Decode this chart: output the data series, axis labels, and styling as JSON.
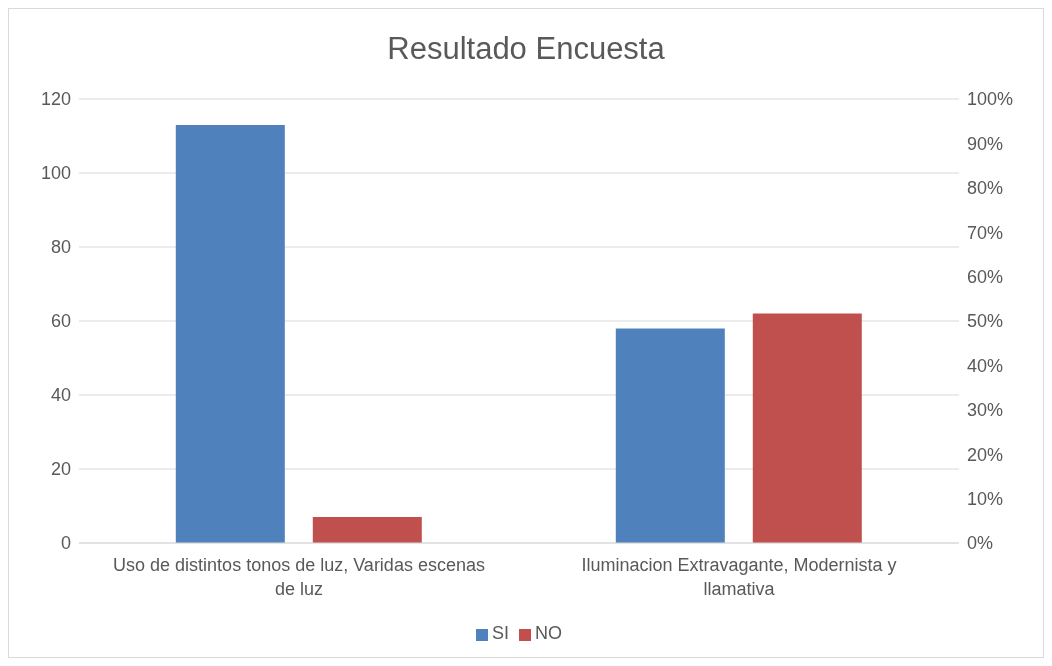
{
  "chart_data": {
    "type": "bar",
    "title": "Resultado Encuesta",
    "categories": [
      "Uso de distintos tonos de luz, Varidas escenas de luz",
      "Iluminacion Extravagante, Modernista y llamativa"
    ],
    "series": [
      {
        "name": "SI",
        "color": "#4f81bd",
        "values": [
          113,
          58
        ]
      },
      {
        "name": "NO",
        "color": "#c0504d",
        "values": [
          7,
          62
        ]
      }
    ],
    "ylim": [
      0,
      120
    ],
    "yticks": [
      0,
      20,
      40,
      60,
      80,
      100,
      120
    ],
    "y2lim": [
      0,
      100
    ],
    "y2ticks": [
      {
        "value": 0,
        "label": "0%"
      },
      {
        "value": 10,
        "label": "10%"
      },
      {
        "value": 20,
        "label": "20%"
      },
      {
        "value": 30,
        "label": "30%"
      },
      {
        "value": 40,
        "label": "40%"
      },
      {
        "value": 50,
        "label": "50%"
      },
      {
        "value": 60,
        "label": "60%"
      },
      {
        "value": 70,
        "label": "70%"
      },
      {
        "value": 80,
        "label": "80%"
      },
      {
        "value": 90,
        "label": "90%"
      },
      {
        "value": 100,
        "label": "100%"
      }
    ],
    "grid": "y",
    "legend": "bottom"
  }
}
